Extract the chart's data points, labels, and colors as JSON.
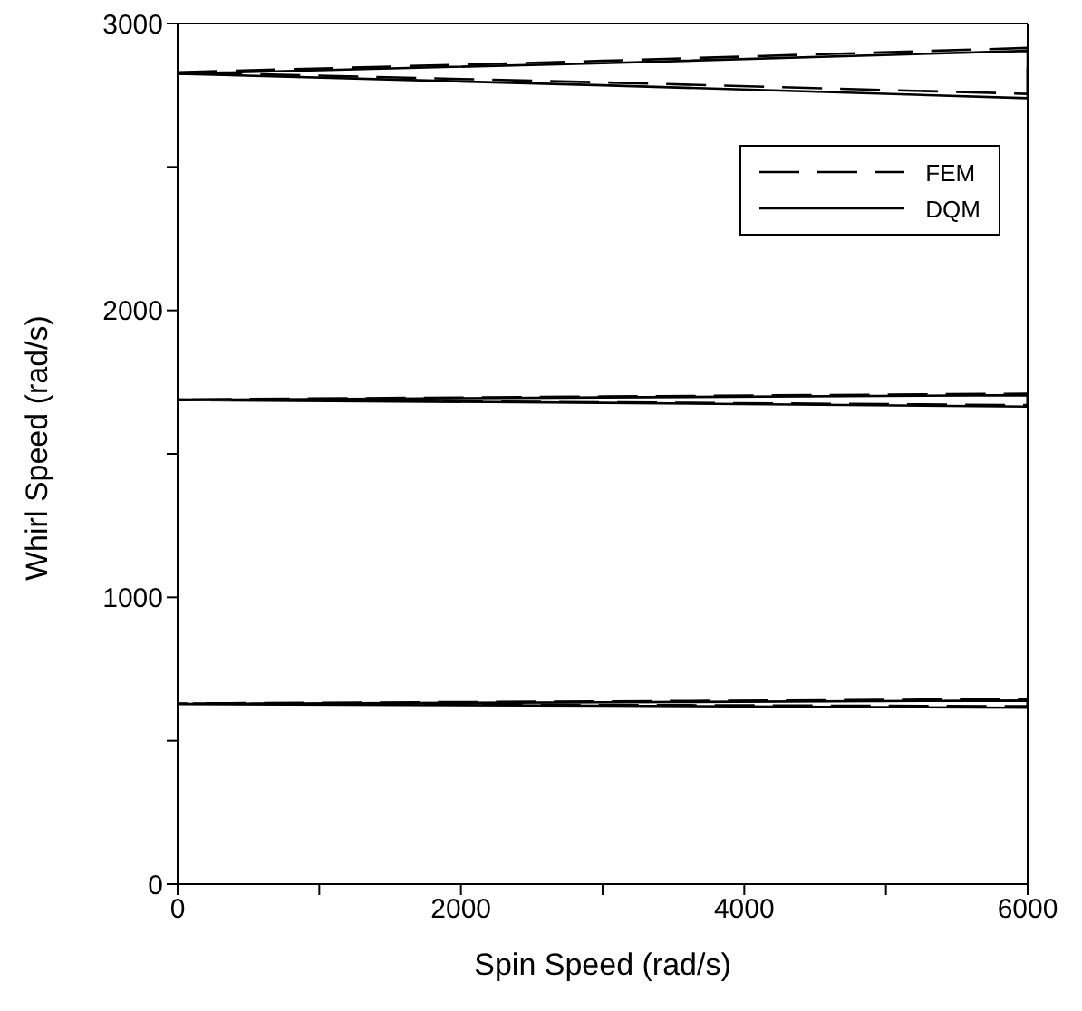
{
  "chart_data": {
    "type": "line",
    "xlabel": "Spin Speed (rad/s)",
    "ylabel": "Whirl Speed (rad/s)",
    "xlim": [
      0,
      6000
    ],
    "xticks": [
      0,
      {
        "value": 1000,
        "label": null
      },
      2000,
      {
        "value": 3000,
        "label": null
      },
      4000,
      {
        "value": 5000,
        "label": null
      },
      6000
    ],
    "ylim": [
      0,
      3000
    ],
    "yticks": [
      0,
      {
        "value": 500,
        "label": null
      },
      1000,
      {
        "value": 1500,
        "label": null
      },
      2000,
      {
        "value": 2500,
        "label": null
      },
      3000
    ],
    "grid": false,
    "legend": "top right",
    "marker": "none",
    "series": [
      {
        "name": "FEM",
        "color": "#000000",
        "line_style": "dashed",
        "x": [
          0,
          3000,
          6000,
          6000,
          3000,
          0,
          0,
          3000,
          6000,
          6000,
          3000,
          0,
          0,
          3000,
          6000,
          6000,
          3000,
          0
        ],
        "values": [
          2830,
          2870,
          2915,
          2755,
          2795,
          2830,
          1690,
          1700,
          1710,
          1670,
          1680,
          1690,
          630,
          637,
          645,
          620,
          625,
          630
        ]
      },
      {
        "name": "DQM",
        "color": "#000000",
        "line_style": "solid",
        "x": [
          0,
          3000,
          6000,
          6000,
          3000,
          0,
          0,
          3000,
          6000,
          6000,
          3000,
          0,
          0,
          3000,
          6000,
          6000,
          3000,
          0
        ],
        "values": [
          2825,
          2862,
          2905,
          2740,
          2785,
          2825,
          1688,
          1697,
          1705,
          1665,
          1678,
          1688,
          628,
          634,
          640,
          615,
          622,
          628
        ]
      }
    ]
  }
}
